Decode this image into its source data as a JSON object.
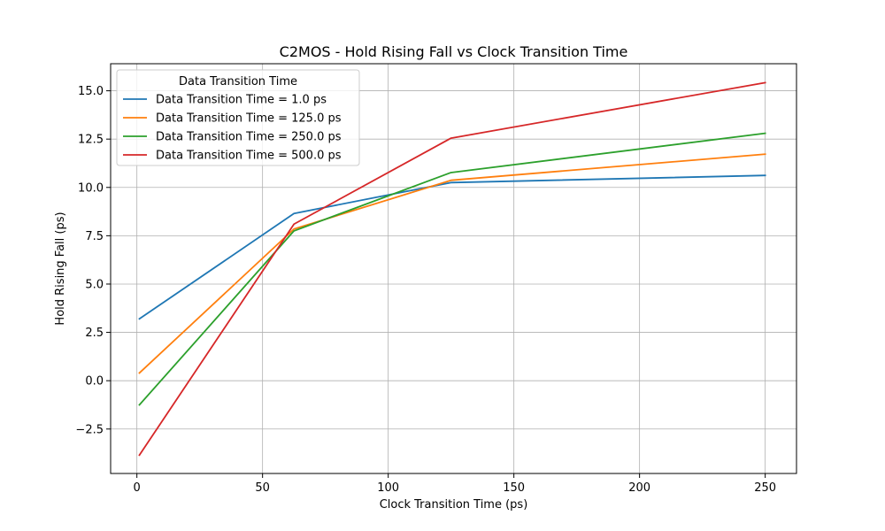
{
  "chart_data": {
    "type": "line",
    "title": "C2MOS - Hold Rising Fall vs Clock Transition Time",
    "xlabel": "Clock Transition Time (ps)",
    "ylabel": "Hold Rising Fall (ps)",
    "xlim": [
      -10.45,
      262.45
    ],
    "ylim": [
      -4.8,
      16.4
    ],
    "xticks": [
      0,
      50,
      100,
      150,
      200,
      250
    ],
    "yticks": [
      -2.5,
      0.0,
      2.5,
      5.0,
      7.5,
      10.0,
      12.5,
      15.0
    ],
    "xtick_labels": [
      "0",
      "50",
      "100",
      "150",
      "200",
      "250"
    ],
    "ytick_labels": [
      "−2.5",
      "0.0",
      "2.5",
      "5.0",
      "7.5",
      "10.0",
      "12.5",
      "15.0"
    ],
    "grid": true,
    "legend": {
      "title": "Data Transition Time",
      "placement": "top-left"
    },
    "x": [
      1.0,
      62.5,
      125.0,
      250.0
    ],
    "series": [
      {
        "name": "Data Transition Time = 1.0 ps",
        "color": "#1f77b4",
        "values": [
          3.2,
          8.65,
          10.25,
          10.62
        ]
      },
      {
        "name": "Data Transition Time = 125.0 ps",
        "color": "#ff7f0e",
        "values": [
          0.4,
          7.85,
          10.37,
          11.72
        ]
      },
      {
        "name": "Data Transition Time = 250.0 ps",
        "color": "#2ca02c",
        "values": [
          -1.25,
          7.75,
          10.77,
          12.8
        ]
      },
      {
        "name": "Data Transition Time = 500.0 ps",
        "color": "#d62728",
        "values": [
          -3.85,
          8.1,
          12.55,
          15.42
        ]
      }
    ]
  }
}
